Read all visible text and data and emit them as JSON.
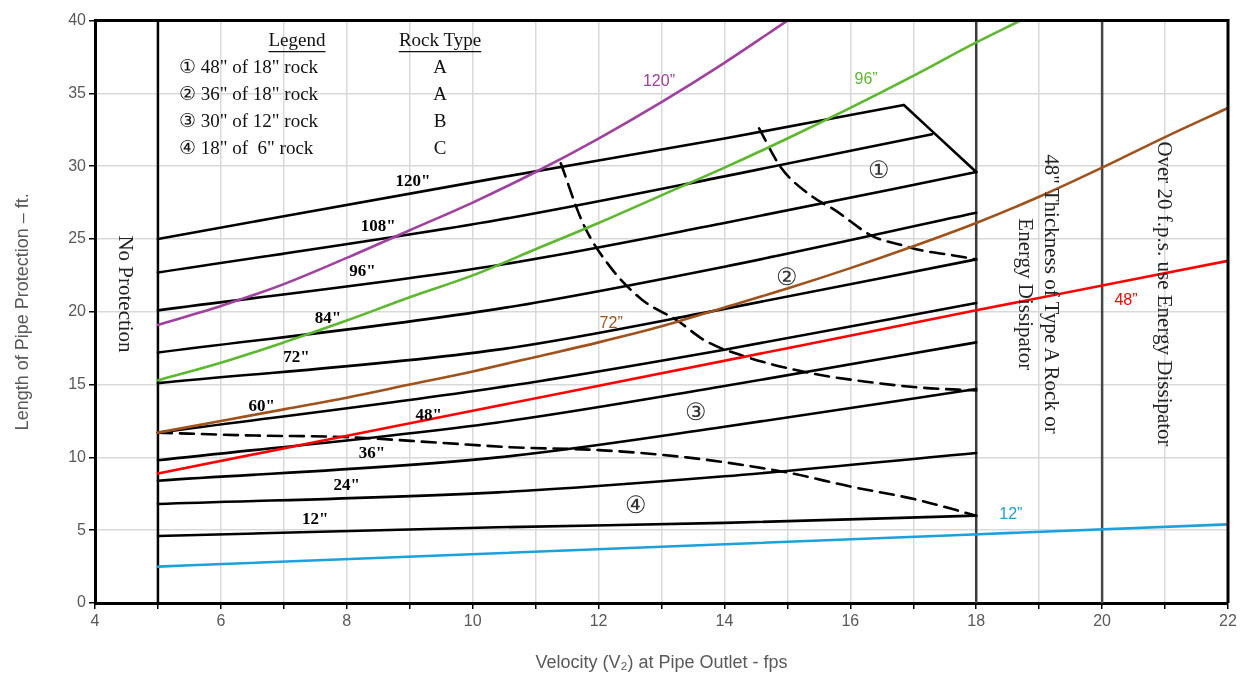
{
  "chart_data": {
    "type": "line",
    "xlabel": "Velocity (V₂) at Pipe Outlet - fps",
    "ylabel": "Length of Pipe Protection – ft.",
    "xlim": [
      4,
      22
    ],
    "ylim": [
      0,
      40
    ],
    "xticks": [
      4,
      {
        "value": 5,
        "label": null
      },
      6,
      {
        "value": 7,
        "label": null
      },
      8,
      {
        "value": 9,
        "label": null
      },
      10,
      {
        "value": 11,
        "label": null
      },
      12,
      {
        "value": 13,
        "label": null
      },
      14,
      {
        "value": 15,
        "label": null
      },
      16,
      {
        "value": 17,
        "label": null
      },
      18,
      {
        "value": 19,
        "label": null
      },
      20,
      {
        "value": 21,
        "label": null
      },
      22
    ],
    "yticks": [
      0,
      5,
      10,
      15,
      20,
      25,
      30,
      35,
      40
    ],
    "grid": true,
    "marker": "none",
    "series": [
      {
        "name": "120\"",
        "color": "#000000",
        "x": [
          5,
          10.4,
          14,
          16.85
        ],
        "values": [
          25.0,
          29.2,
          31.9,
          34.2
        ]
      },
      {
        "name": "108\"",
        "color": "#000000",
        "x": [
          5,
          10.4,
          14,
          17.3
        ],
        "values": [
          22.7,
          26.3,
          29.3,
          32.2
        ]
      },
      {
        "name": "96\"",
        "color": "#000000",
        "x": [
          5,
          10.4,
          14,
          18
        ],
        "values": [
          20.1,
          23.2,
          26.1,
          29.6
        ]
      },
      {
        "name": "84\"",
        "color": "#000000",
        "x": [
          5,
          10.4,
          14,
          18
        ],
        "values": [
          17.2,
          20.2,
          23.1,
          26.8
        ]
      },
      {
        "name": "72\"",
        "color": "#000000",
        "x": [
          5,
          10.4,
          14,
          18
        ],
        "values": [
          15.1,
          17.4,
          20.2,
          23.6
        ]
      },
      {
        "name": "60\"",
        "color": "#000000",
        "x": [
          5,
          10.4,
          14,
          18
        ],
        "values": [
          11.7,
          14.8,
          17.4,
          20.6
        ]
      },
      {
        "name": "48\"",
        "color": "#000000",
        "x": [
          5,
          10.4,
          14,
          18
        ],
        "values": [
          9.8,
          12.4,
          14.9,
          17.9
        ]
      },
      {
        "name": "36\"",
        "color": "#000000",
        "x": [
          5,
          10.4,
          14,
          18
        ],
        "values": [
          8.4,
          10.0,
          12.1,
          14.7
        ]
      },
      {
        "name": "24\"",
        "color": "#000000",
        "x": [
          5,
          10.4,
          14,
          18
        ],
        "values": [
          6.8,
          7.6,
          8.7,
          10.3
        ]
      },
      {
        "name": "12\"",
        "color": "#000000",
        "x": [
          5,
          10.4,
          14,
          18
        ],
        "values": [
          4.6,
          5.2,
          5.5,
          6.0
        ]
      },
      {
        "color": "#000000",
        "line_style": "dashed",
        "x": [
          11.4,
          11.75,
          12.2,
          12.7,
          13.25,
          13.7,
          14.35,
          15.35,
          16.25,
          17.1,
          18
        ],
        "values": [
          30.2,
          26.1,
          23.0,
          20.8,
          19.4,
          18.0,
          16.9,
          15.8,
          15.2,
          14.8,
          14.6
        ]
      },
      {
        "color": "#000000",
        "line_style": "dashed",
        "x": [
          14.55,
          14.9,
          15.4,
          15.75,
          16.35,
          16.8,
          17.15,
          17.6,
          18
        ],
        "values": [
          32.6,
          29.9,
          27.9,
          27.0,
          25.2,
          24.6,
          24.2,
          23.9,
          23.6
        ]
      },
      {
        "color": "#000000",
        "line_style": "dashed",
        "x": [
          5,
          6.55,
          7.95,
          9.5,
          10.6,
          12.0,
          13.4,
          14.95,
          16.0,
          17.05,
          18
        ],
        "values": [
          11.7,
          11.5,
          11.4,
          11.0,
          10.7,
          10.5,
          10.0,
          9.0,
          8.0,
          7.1,
          6.0
        ]
      },
      {
        "color": "#000000",
        "x": [
          16.85,
          18
        ],
        "values": [
          34.2,
          29.6
        ]
      },
      {
        "name": "120”",
        "color": "#a040a0",
        "x": [
          5,
          6,
          7,
          8,
          9,
          10,
          11,
          12,
          13,
          14,
          15
        ],
        "values": [
          19.1,
          20.4,
          21.9,
          23.7,
          25.6,
          27.5,
          29.6,
          31.9,
          34.4,
          37.1,
          40.0
        ]
      },
      {
        "name": "96”",
        "color": "#5cb82e",
        "x": [
          5,
          6,
          7,
          8,
          9,
          10,
          11,
          12,
          13,
          14,
          15,
          16,
          17,
          18,
          18.7
        ],
        "values": [
          15.3,
          16.5,
          17.9,
          19.4,
          21.0,
          22.5,
          24.3,
          26.1,
          28.0,
          29.9,
          31.9,
          34.0,
          36.2,
          38.5,
          40.0
        ]
      },
      {
        "name": "72”",
        "color": "#a0521d",
        "x": [
          5,
          6,
          7,
          8,
          9,
          10,
          11,
          12,
          13,
          14,
          15,
          16,
          17,
          18,
          19,
          20,
          21,
          22
        ],
        "values": [
          11.7,
          12.5,
          13.3,
          14.1,
          15.0,
          15.9,
          16.9,
          17.9,
          19.0,
          20.3,
          21.6,
          23.0,
          24.5,
          26.1,
          27.9,
          29.9,
          32.0,
          34.0
        ]
      },
      {
        "name": "48”",
        "color": "#ff0000",
        "x": [
          5,
          10,
          15,
          18,
          22
        ],
        "values": [
          8.9,
          13.2,
          17.5,
          20.1,
          23.5
        ]
      },
      {
        "name": "12”",
        "color": "#1ba1dc",
        "x": [
          5,
          13.5,
          22
        ],
        "values": [
          2.5,
          3.95,
          5.4
        ]
      }
    ],
    "ref_lines": [
      {
        "axis": "x",
        "value": 5,
        "label": "No Protection",
        "color": "#000000"
      },
      {
        "axis": "x",
        "value": 18,
        "label": "48\" Thickness of Type A Rock or Energy Dissipator",
        "color": "#3c3c3c"
      },
      {
        "axis": "x",
        "value": 20,
        "label": "Over 20 f.p.s. use Energy Dissipator",
        "color": "#474747"
      }
    ],
    "annotations": [
      "Legend",
      "Rock Type",
      "① 48\" of 18\" rock",
      "A",
      "② 36\" of 18\" rock",
      "A",
      "③ 30\" of 12\" rock",
      "B",
      "④ 18\" of  6\" rock",
      "C",
      "①",
      "②",
      "③",
      "④"
    ]
  }
}
